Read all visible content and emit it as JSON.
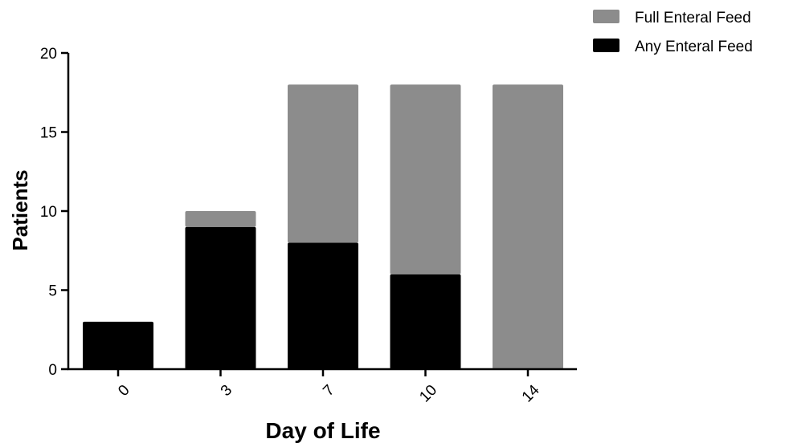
{
  "chart_data": {
    "type": "bar",
    "stacked": true,
    "title": "",
    "xlabel": "Day of Life",
    "ylabel": "Patients",
    "categories": [
      "0",
      "3",
      "7",
      "10",
      "14"
    ],
    "ylim": [
      0,
      20
    ],
    "yticks": [
      "0",
      "5",
      "10",
      "15",
      "20"
    ],
    "grid": false,
    "legend_position": "top-right",
    "series": [
      {
        "name": "Any Enteral Feed",
        "values": [
          3,
          9,
          8,
          6,
          0
        ],
        "color": "#000000"
      },
      {
        "name": "Full Enteral Feed",
        "values": [
          0,
          1,
          10,
          12,
          18
        ],
        "color": "#8c8c8c"
      }
    ],
    "legend": [
      {
        "label": "Full Enteral Feed",
        "color": "#8c8c8c"
      },
      {
        "label": "Any Enteral Feed",
        "color": "#000000"
      }
    ]
  }
}
